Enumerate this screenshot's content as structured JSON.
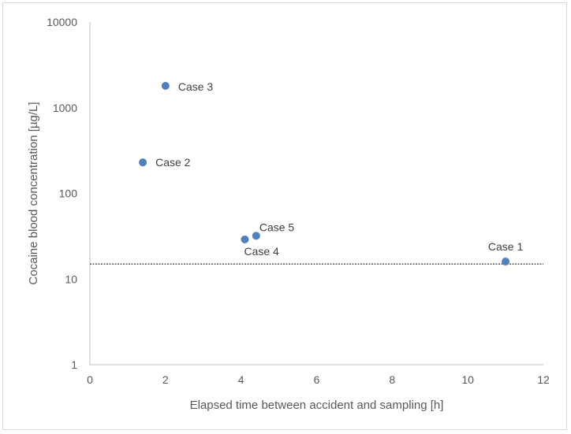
{
  "chart_data": {
    "type": "scatter",
    "title": "",
    "xlabel": "Elapsed time between accident and sampling [h]",
    "ylabel": "Cocaine blood concentration [µg/L]",
    "xlim": [
      0,
      12
    ],
    "ylim": [
      1,
      10000
    ],
    "y_scale": "log",
    "grid": false,
    "legend": "none",
    "x_ticks": [
      "0",
      "2",
      "4",
      "6",
      "8",
      "10",
      "12"
    ],
    "y_ticks": [
      "1",
      "10",
      "100",
      "1000",
      "10000"
    ],
    "points": [
      {
        "label": "Case 1",
        "x": 11.0,
        "y": 16
      },
      {
        "label": "Case 2",
        "x": 1.4,
        "y": 230
      },
      {
        "label": "Case 3",
        "x": 2.0,
        "y": 1800
      },
      {
        "label": "Case 4",
        "x": 4.1,
        "y": 29
      },
      {
        "label": "Case 5",
        "x": 4.4,
        "y": 32
      }
    ],
    "reference_line": {
      "y": 15,
      "style": "dotted"
    },
    "marker_color": "#4f81bd",
    "axis_color": "#bfbfbf",
    "text_color": "#595959"
  }
}
